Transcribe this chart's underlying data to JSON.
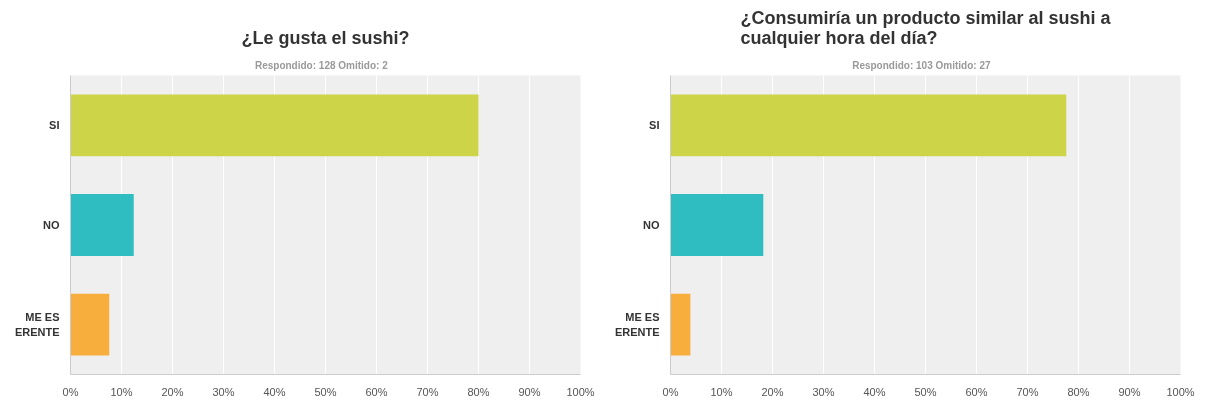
{
  "chart_data": [
    {
      "type": "bar",
      "orientation": "horizontal",
      "title": "¿Le gusta el sushi?",
      "subtitle": "Respondido: 128    Omitido: 2",
      "categories": [
        "SI",
        "NO",
        "ME ES\nERENTE"
      ],
      "values": [
        80,
        12.4,
        7.6
      ],
      "colors": [
        "#cdd447",
        "#2fbdc1",
        "#f7ae3c"
      ],
      "xlim": [
        0,
        100
      ],
      "xticks": [
        {
          "value": 0,
          "label": "0%"
        },
        {
          "value": 10,
          "label": "10%"
        },
        {
          "value": 20,
          "label": "20%"
        },
        {
          "value": 30,
          "label": "30%"
        },
        {
          "value": 40,
          "label": "40%"
        },
        {
          "value": 50,
          "label": "50%"
        },
        {
          "value": 60,
          "label": "60%"
        },
        {
          "value": 70,
          "label": "70%"
        },
        {
          "value": 80,
          "label": "80%"
        },
        {
          "value": 90,
          "label": "90%"
        },
        {
          "value": 100,
          "label": "100%"
        }
      ],
      "grid": "x"
    },
    {
      "type": "bar",
      "orientation": "horizontal",
      "title": "¿Consumiría un producto similar al sushi a\ncualquier hora del día?",
      "subtitle": "Respondido: 103    Omitido: 27",
      "categories": [
        "SI",
        "NO",
        "ME ES\nERENTE"
      ],
      "values": [
        77.6,
        18.2,
        3.9
      ],
      "colors": [
        "#cdd447",
        "#2fbdc1",
        "#f7ae3c"
      ],
      "xlim": [
        0,
        100
      ],
      "xticks": [
        {
          "value": 0,
          "label": "0%"
        },
        {
          "value": 10,
          "label": "10%"
        },
        {
          "value": 20,
          "label": "20%"
        },
        {
          "value": 30,
          "label": "30%"
        },
        {
          "value": 40,
          "label": "40%"
        },
        {
          "value": 50,
          "label": "50%"
        },
        {
          "value": 60,
          "label": "60%"
        },
        {
          "value": 70,
          "label": "70%"
        },
        {
          "value": 80,
          "label": "80%"
        },
        {
          "value": 90,
          "label": "90%"
        },
        {
          "value": 100,
          "label": "100%"
        }
      ],
      "grid": "x"
    }
  ]
}
